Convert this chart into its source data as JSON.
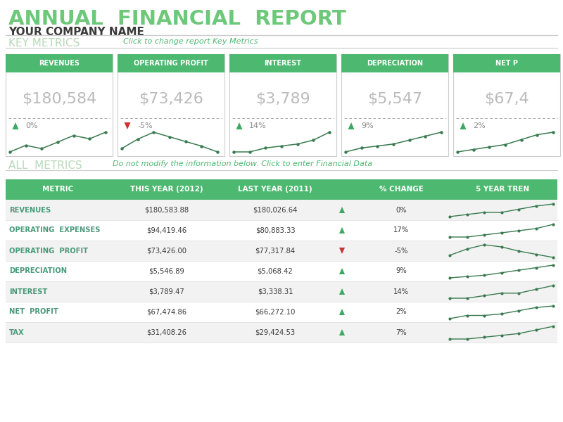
{
  "title": "ANNUAL  FINANCIAL  REPORT",
  "company": "YOUR COMPANY NAME",
  "key_metrics_label": "KEY METRICS",
  "key_metrics_subtitle": "Click to change report Key Metrics",
  "all_metrics_label": "ALL  METRICS",
  "all_metrics_subtitle": "Do not modify the information below. Click to enter Financial Data",
  "green": "#4db870",
  "light_green_title": "#6dc87a",
  "dark_text": "#3a3a3a",
  "gray_val": "#bbbbbb",
  "teal_text": "#4a9a7a",
  "section_label_color": "#b8d8b8",
  "bg_white": "#ffffff",
  "cards": [
    {
      "title": "REVENUES",
      "value": "$180,584",
      "pct": "0%",
      "up": true
    },
    {
      "title": "OPERATING PROFIT",
      "value": "$73,426",
      "pct": "-5%",
      "up": false
    },
    {
      "title": "INTEREST",
      "value": "$3,789",
      "pct": "14%",
      "up": true
    },
    {
      "title": "DEPRECIATION",
      "value": "$5,547",
      "pct": "9%",
      "up": true
    },
    {
      "title": "NET P",
      "value": "$67,4",
      "pct": "2%",
      "up": true
    }
  ],
  "card_sparklines": [
    [
      1.0,
      1.2,
      1.1,
      1.3,
      1.5,
      1.4,
      1.6
    ],
    [
      1.0,
      1.4,
      1.7,
      1.5,
      1.3,
      1.1,
      0.85
    ],
    [
      1.0,
      1.0,
      1.1,
      1.15,
      1.2,
      1.3,
      1.5
    ],
    [
      1.0,
      1.1,
      1.15,
      1.2,
      1.3,
      1.4,
      1.5
    ],
    [
      1.0,
      1.05,
      1.1,
      1.15,
      1.25,
      1.35,
      1.4
    ]
  ],
  "table_headers": [
    "METRIC",
    "THIS YEAR (2012)",
    "LAST YEAR (2011)",
    "",
    "% CHANGE",
    "5 YEAR TREN"
  ],
  "table_rows": [
    {
      "metric": "REVENUES",
      "this_year": "$180,583.88",
      "last_year": "$180,026.64",
      "pct": "0%",
      "up": true,
      "spark": [
        1.0,
        1.1,
        1.2,
        1.2,
        1.35,
        1.5,
        1.6
      ]
    },
    {
      "metric": "OPERATING  EXPENSES",
      "this_year": "$94,419.46",
      "last_year": "$80,883.33",
      "pct": "17%",
      "up": true,
      "spark": [
        1.0,
        1.0,
        1.05,
        1.1,
        1.15,
        1.2,
        1.3
      ]
    },
    {
      "metric": "OPERATING  PROFIT",
      "this_year": "$73,426.00",
      "last_year": "$77,317.84",
      "pct": "-5%",
      "up": false,
      "spark": [
        1.0,
        1.3,
        1.5,
        1.4,
        1.2,
        1.05,
        0.9
      ]
    },
    {
      "metric": "DEPRECIATION",
      "this_year": "$5,546.89",
      "last_year": "$5,068.42",
      "pct": "9%",
      "up": true,
      "spark": [
        1.0,
        1.05,
        1.1,
        1.2,
        1.3,
        1.4,
        1.5
      ]
    },
    {
      "metric": "INTEREST",
      "this_year": "$3,789.47",
      "last_year": "$3,338.31",
      "pct": "14%",
      "up": true,
      "spark": [
        1.0,
        1.0,
        1.1,
        1.2,
        1.2,
        1.35,
        1.5
      ]
    },
    {
      "metric": "NET  PROFIT",
      "this_year": "$67,474.86",
      "last_year": "$66,272.10",
      "pct": "2%",
      "up": true,
      "spark": [
        1.0,
        1.1,
        1.1,
        1.15,
        1.25,
        1.35,
        1.4
      ]
    },
    {
      "metric": "TAX",
      "this_year": "$31,408.26",
      "last_year": "$29,424.53",
      "pct": "7%",
      "up": true,
      "spark": [
        1.0,
        1.0,
        1.05,
        1.1,
        1.15,
        1.25,
        1.35
      ]
    }
  ]
}
